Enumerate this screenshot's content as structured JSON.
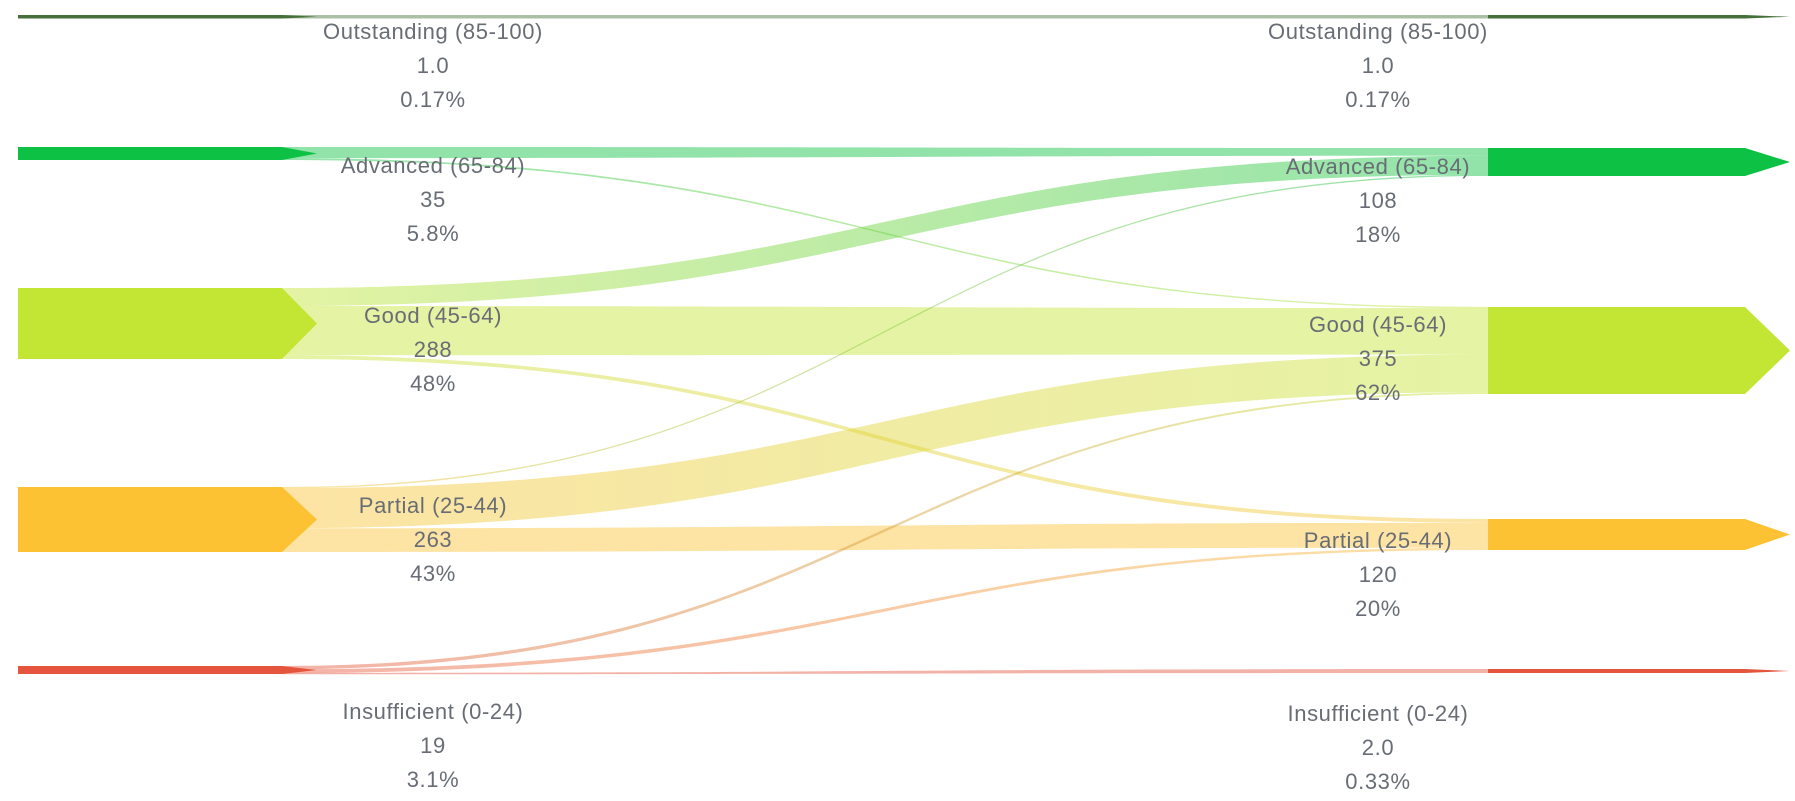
{
  "page": {
    "background": "#ffffff"
  },
  "chart_data": {
    "type": "sankey",
    "orientation": "horizontal",
    "title": "",
    "legend": "none",
    "text_color": "#686d75",
    "palette": {
      "outstanding": "#45703a",
      "advanced": "#0cc143",
      "good": "#c3e534",
      "partial": "#fcc234",
      "insufficient": "#e5553e"
    },
    "stages": [
      {
        "name": "left",
        "nodes": [
          {
            "id": "outstanding",
            "label": "Outstanding (85-100)",
            "value": "1.0",
            "value_num": 1,
            "percent": "0.17%",
            "color": "#45703a"
          },
          {
            "id": "advanced",
            "label": "Advanced (65-84)",
            "value": "35",
            "value_num": 35,
            "percent": "5.8%",
            "color": "#0cc143"
          },
          {
            "id": "good",
            "label": "Good (45-64)",
            "value": "288",
            "value_num": 288,
            "percent": "48%",
            "color": "#c3e534"
          },
          {
            "id": "partial",
            "label": "Partial (25-44)",
            "value": "263",
            "value_num": 263,
            "percent": "43%",
            "color": "#fcc234"
          },
          {
            "id": "insufficient",
            "label": "Insufficient (0-24)",
            "value": "19",
            "value_num": 19,
            "percent": "3.1%",
            "color": "#e5553e"
          }
        ]
      },
      {
        "name": "right",
        "nodes": [
          {
            "id": "outstanding",
            "label": "Outstanding (85-100)",
            "value": "1.0",
            "value_num": 1,
            "percent": "0.17%",
            "color": "#45703a"
          },
          {
            "id": "advanced",
            "label": "Advanced (65-84)",
            "value": "108",
            "value_num": 108,
            "percent": "18%",
            "color": "#0cc143"
          },
          {
            "id": "good",
            "label": "Good (45-64)",
            "value": "375",
            "value_num": 375,
            "percent": "62%",
            "color": "#c3e534"
          },
          {
            "id": "partial",
            "label": "Partial (25-44)",
            "value": "120",
            "value_num": 120,
            "percent": "20%",
            "color": "#fcc234"
          },
          {
            "id": "insufficient",
            "label": "Insufficient (0-24)",
            "value": "2.0",
            "value_num": 2,
            "percent": "0.33%",
            "color": "#e5553e"
          }
        ]
      }
    ],
    "links": [
      {
        "from": "outstanding",
        "to": "outstanding",
        "value": 1
      },
      {
        "from": "advanced",
        "to": "advanced",
        "value": 30
      },
      {
        "from": "advanced",
        "to": "good",
        "value": 5
      },
      {
        "from": "good",
        "to": "advanced",
        "value": 73
      },
      {
        "from": "good",
        "to": "good",
        "value": 200
      },
      {
        "from": "good",
        "to": "partial",
        "value": 15
      },
      {
        "from": "partial",
        "to": "advanced",
        "value": 5
      },
      {
        "from": "partial",
        "to": "good",
        "value": 162
      },
      {
        "from": "partial",
        "to": "partial",
        "value": 96
      },
      {
        "from": "insufficient",
        "to": "good",
        "value": 8
      },
      {
        "from": "insufficient",
        "to": "partial",
        "value": 9
      },
      {
        "from": "insufficient",
        "to": "insufficient",
        "value": 2
      }
    ],
    "links_note": "link values estimated from ribbon widths; node values/percents are as labeled on screen"
  }
}
